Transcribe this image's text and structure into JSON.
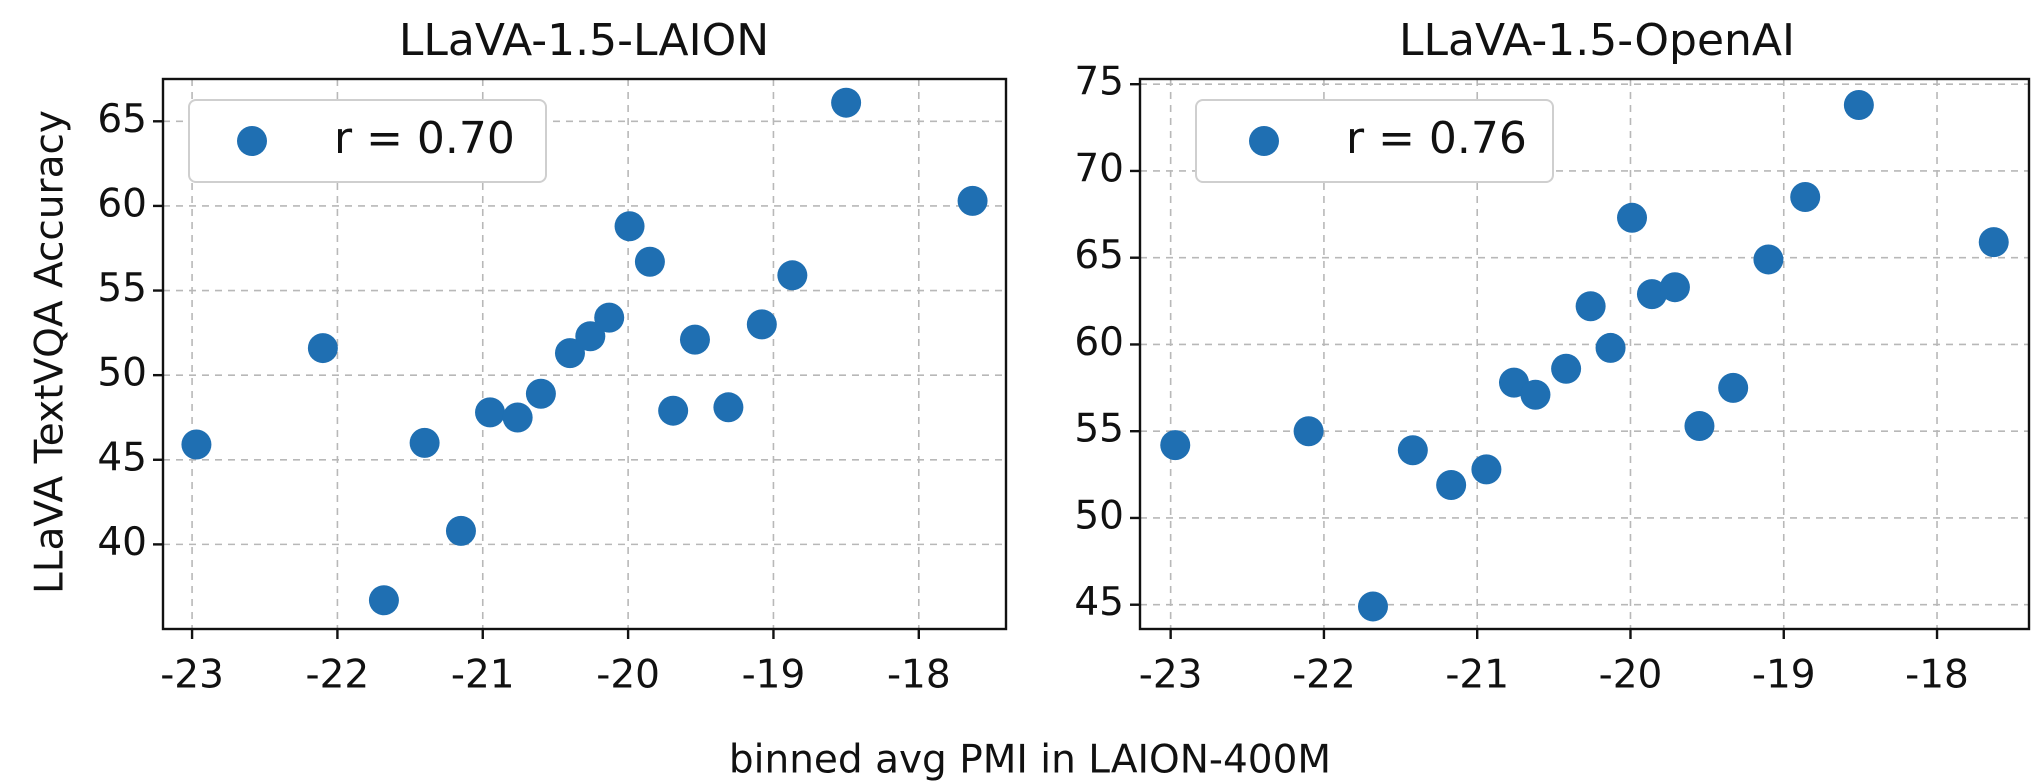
{
  "figure": {
    "shared_xlabel": "binned avg PMI in LAION-400M",
    "shared_ylabel": "LLaVA TextVQA Accuracy",
    "marker_color": "#1f6fb2"
  },
  "chart_data": [
    {
      "type": "scatter",
      "title": "LLaVA-1.5-LAION",
      "xlabel": "binned avg PMI in LAION-400M",
      "ylabel": "LLaVA TextVQA Accuracy",
      "xlim": [
        -23.2,
        -17.4
      ],
      "ylim": [
        35,
        67.5
      ],
      "xticks": [
        -23,
        -22,
        -21,
        -20,
        -19,
        -18
      ],
      "xtick_labels": [
        "-23",
        "-22",
        "-21",
        "-20",
        "-19",
        "-18"
      ],
      "yticks": [
        40,
        45,
        50,
        55,
        60,
        65
      ],
      "ytick_labels": [
        "40",
        "45",
        "50",
        "55",
        "60",
        "65"
      ],
      "grid": true,
      "legend": {
        "label": "r = 0.70",
        "position": "top-left"
      },
      "series": [
        {
          "name": "r = 0.70",
          "color": "#1f6fb2",
          "points": [
            {
              "x": -22.97,
              "y": 45.9
            },
            {
              "x": -22.1,
              "y": 51.6
            },
            {
              "x": -21.68,
              "y": 36.7
            },
            {
              "x": -21.4,
              "y": 46.0
            },
            {
              "x": -21.15,
              "y": 40.8
            },
            {
              "x": -20.95,
              "y": 47.8
            },
            {
              "x": -20.76,
              "y": 47.5
            },
            {
              "x": -20.6,
              "y": 48.9
            },
            {
              "x": -20.4,
              "y": 51.3
            },
            {
              "x": -20.26,
              "y": 52.3
            },
            {
              "x": -20.13,
              "y": 53.4
            },
            {
              "x": -19.99,
              "y": 58.8
            },
            {
              "x": -19.85,
              "y": 56.7
            },
            {
              "x": -19.69,
              "y": 47.9
            },
            {
              "x": -19.54,
              "y": 52.1
            },
            {
              "x": -19.31,
              "y": 48.1
            },
            {
              "x": -19.08,
              "y": 53.0
            },
            {
              "x": -18.87,
              "y": 55.9
            },
            {
              "x": -18.5,
              "y": 66.1
            },
            {
              "x": -17.63,
              "y": 60.3
            }
          ]
        }
      ]
    },
    {
      "type": "scatter",
      "title": "LLaVA-1.5-OpenAI",
      "xlabel": "binned avg PMI in LAION-400M",
      "ylabel": "",
      "xlim": [
        -23.2,
        -17.4
      ],
      "ylim": [
        43.6,
        75.3
      ],
      "xticks": [
        -23,
        -22,
        -21,
        -20,
        -19,
        -18
      ],
      "xtick_labels": [
        "-23",
        "-22",
        "-21",
        "-20",
        "-19",
        "-18"
      ],
      "yticks": [
        45,
        50,
        55,
        60,
        65,
        70,
        75
      ],
      "ytick_labels": [
        "45",
        "50",
        "55",
        "60",
        "65",
        "70",
        "75"
      ],
      "grid": true,
      "legend": {
        "label": "r = 0.76",
        "position": "top-left"
      },
      "series": [
        {
          "name": "r = 0.76",
          "color": "#1f6fb2",
          "points": [
            {
              "x": -22.97,
              "y": 54.2
            },
            {
              "x": -22.1,
              "y": 55.0
            },
            {
              "x": -21.68,
              "y": 44.9
            },
            {
              "x": -21.42,
              "y": 53.9
            },
            {
              "x": -21.17,
              "y": 51.9
            },
            {
              "x": -20.94,
              "y": 52.8
            },
            {
              "x": -20.76,
              "y": 57.8
            },
            {
              "x": -20.62,
              "y": 57.1
            },
            {
              "x": -20.42,
              "y": 58.6
            },
            {
              "x": -20.26,
              "y": 62.2
            },
            {
              "x": -20.13,
              "y": 59.8
            },
            {
              "x": -19.99,
              "y": 67.3
            },
            {
              "x": -19.86,
              "y": 62.9
            },
            {
              "x": -19.71,
              "y": 63.3
            },
            {
              "x": -19.55,
              "y": 55.3
            },
            {
              "x": -19.33,
              "y": 57.5
            },
            {
              "x": -19.1,
              "y": 64.9
            },
            {
              "x": -18.86,
              "y": 68.5
            },
            {
              "x": -18.51,
              "y": 73.8
            },
            {
              "x": -17.63,
              "y": 65.9
            }
          ]
        }
      ]
    }
  ]
}
